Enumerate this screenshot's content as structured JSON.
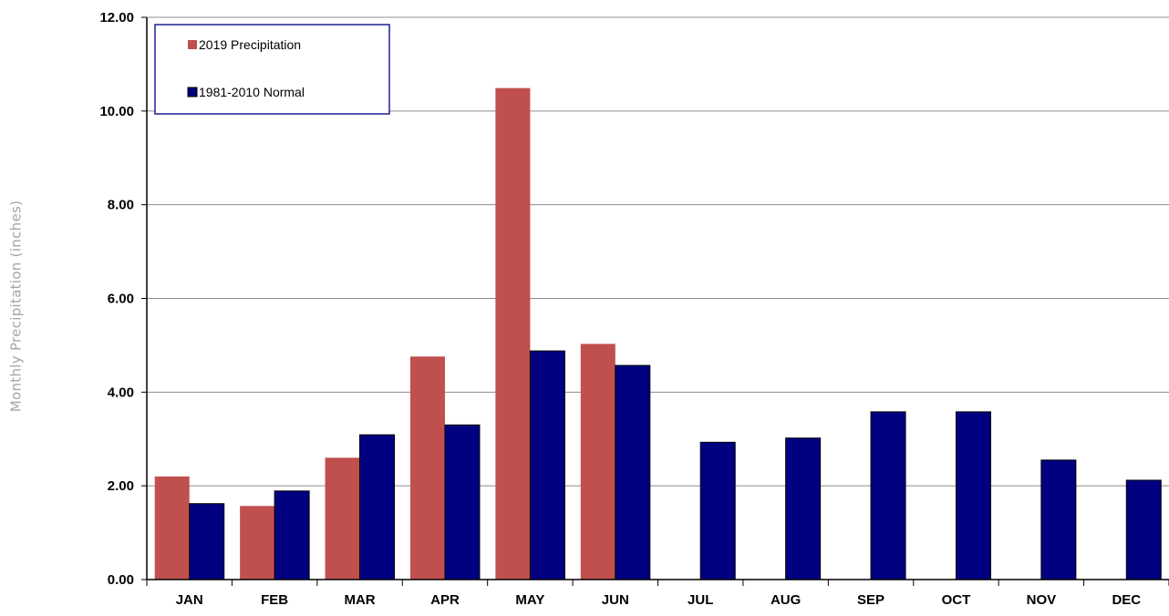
{
  "chart_data": {
    "type": "bar",
    "title": "",
    "xlabel": "",
    "ylabel": "Monthly Precipitation (inches)",
    "ylim": [
      0,
      12
    ],
    "yticks": [
      "0.00",
      "2.00",
      "4.00",
      "6.00",
      "8.00",
      "10.00",
      "12.00"
    ],
    "categories": [
      "JAN",
      "FEB",
      "MAR",
      "APR",
      "MAY",
      "JUN",
      "JUL",
      "AUG",
      "SEP",
      "OCT",
      "NOV",
      "DEC"
    ],
    "grid": "horizontal",
    "legend_position": "top-left",
    "series": [
      {
        "name": "2019 Precipitation",
        "color": "#c0504d",
        "values": [
          2.2,
          1.57,
          2.6,
          4.76,
          10.49,
          5.03,
          null,
          null,
          null,
          null,
          null,
          null
        ]
      },
      {
        "name": "1981-2010 Normal",
        "color": "#000080",
        "values": [
          1.62,
          1.89,
          3.09,
          3.3,
          4.88,
          4.57,
          2.93,
          3.02,
          3.58,
          3.58,
          2.55,
          2.12
        ]
      }
    ]
  }
}
